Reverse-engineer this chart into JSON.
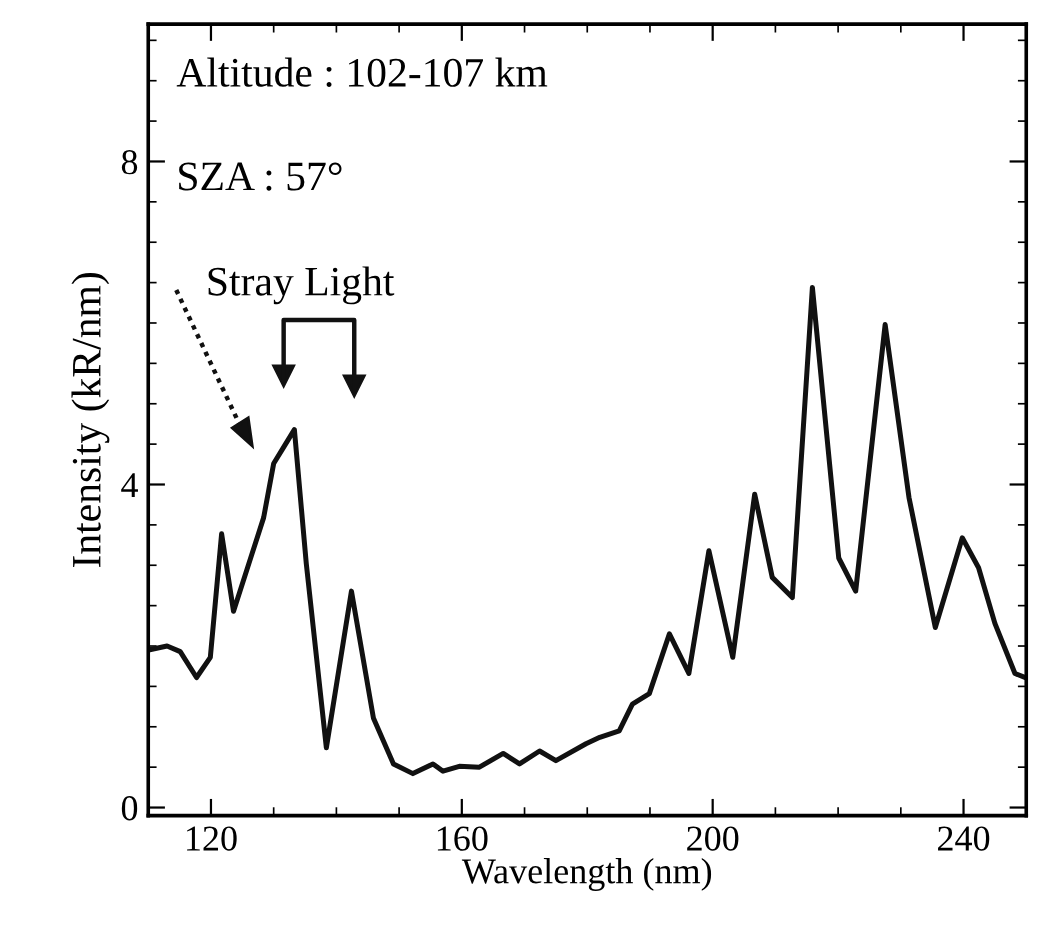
{
  "chart_data": {
    "type": "line",
    "xlabel": "Wavelength (nm)",
    "ylabel": "Intensity (kR/nm)",
    "annotations": [
      "Altitude : 102-107 km",
      "SZA : 57°",
      "Stray Light"
    ],
    "x": [
      110,
      113,
      115.1,
      117.7,
      119.9,
      121.7,
      123.6,
      128.4,
      130,
      131.5,
      133.3,
      135.2,
      138.4,
      142.4,
      145.9,
      149.1,
      152.2,
      155.4,
      157,
      159.6,
      162.8,
      166.6,
      169.2,
      172.4,
      175,
      179.8,
      182,
      185.1,
      187.2,
      189.9,
      193.1,
      196.2,
      199.4,
      203.2,
      206.7,
      209.5,
      212.7,
      215.9,
      220.1,
      222.8,
      227.5,
      231.3,
      235.5,
      239.8,
      242.4,
      245,
      248.2,
      249.8
    ],
    "series": [
      {
        "color": "#111111",
        "values": [
          1.95,
          2.0,
          1.93,
          1.61,
          1.86,
          3.39,
          2.43,
          3.59,
          4.26,
          4.45,
          4.68,
          3.02,
          0.74,
          2.68,
          1.11,
          0.54,
          0.42,
          0.54,
          0.45,
          0.51,
          0.5,
          0.67,
          0.54,
          0.7,
          0.58,
          0.79,
          0.87,
          0.95,
          1.28,
          1.41,
          2.15,
          1.66,
          3.18,
          1.86,
          3.88,
          2.85,
          2.6,
          6.44,
          3.09,
          2.68,
          5.98,
          3.84,
          2.23,
          3.34,
          2.97,
          2.28,
          1.66,
          1.61
        ]
      }
    ],
    "xlim": [
      110,
      250
    ],
    "xticks": [
      120,
      160,
      200,
      240
    ],
    "ylim": [
      -0.1,
      9.7
    ],
    "yticks": [
      0,
      4,
      8
    ],
    "grid": false,
    "legend": false,
    "marker": "none",
    "line_style": "solid"
  }
}
